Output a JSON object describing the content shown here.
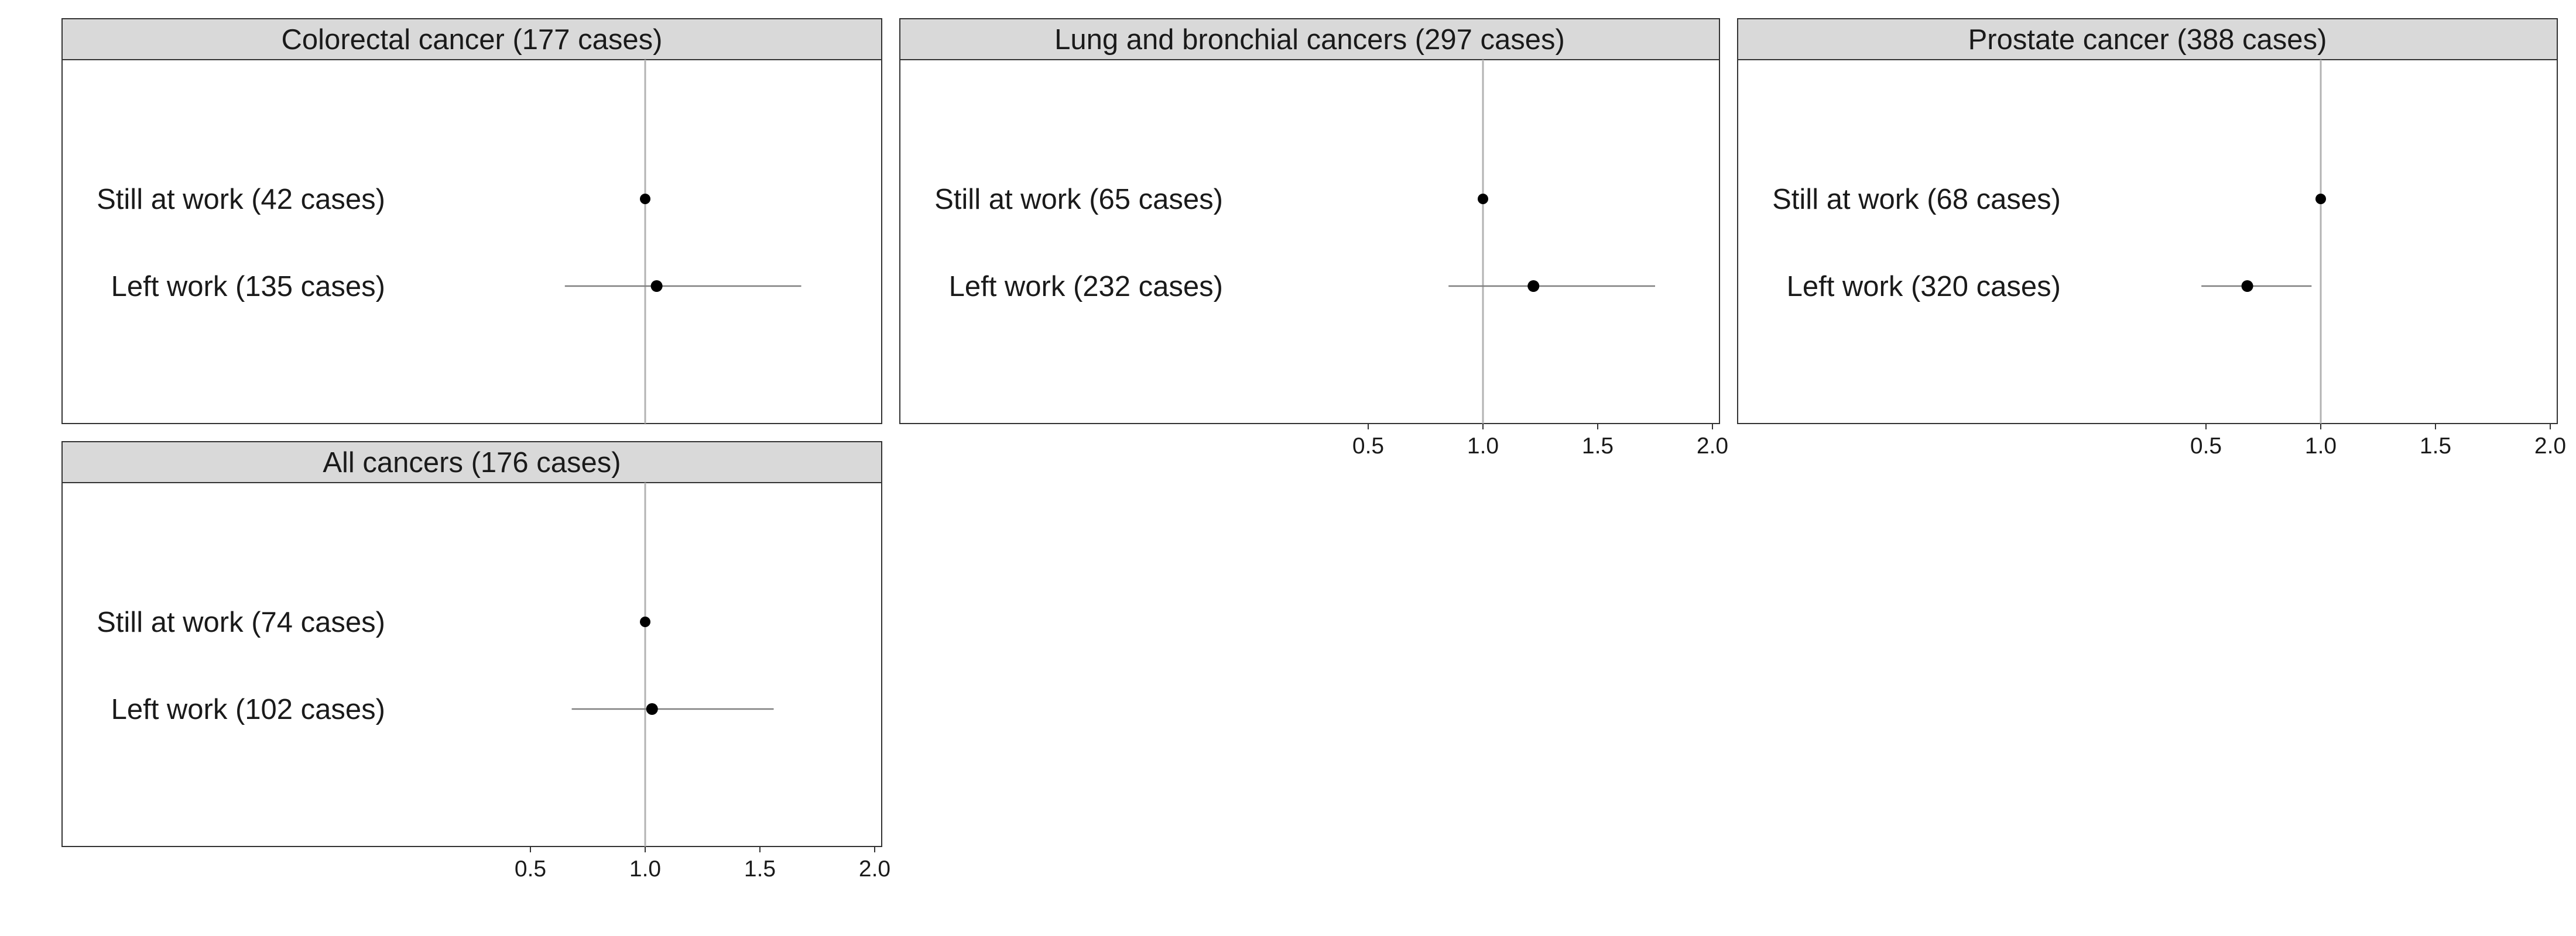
{
  "chart_data": [
    {
      "type": "forest",
      "panel_title": "Colorectal cancer (177 cases)",
      "xlim": [
        0.28,
        2.08
      ],
      "reference_x": 1.0,
      "x_axis_shown": false,
      "ticks": [
        "0.5",
        "1.0",
        "1.5",
        "2.0"
      ],
      "tick_values": [
        0.5,
        1.0,
        1.5,
        2.0
      ],
      "rows": [
        {
          "label": "Still at work (42 cases)",
          "estimate": 1.0,
          "lower": 1.0,
          "upper": 1.0
        },
        {
          "label": "Left work (135 cases)",
          "estimate": 1.05,
          "lower": 0.65,
          "upper": 1.68
        }
      ]
    },
    {
      "type": "forest",
      "panel_title": "Lung and bronchial cancers (297 cases)",
      "xlim": [
        0.28,
        2.08
      ],
      "reference_x": 1.0,
      "x_axis_shown": true,
      "ticks": [
        "0.5",
        "1.0",
        "1.5",
        "2.0"
      ],
      "tick_values": [
        0.5,
        1.0,
        1.5,
        2.0
      ],
      "rows": [
        {
          "label": "Still at work (65 cases)",
          "estimate": 1.0,
          "lower": 1.0,
          "upper": 1.0
        },
        {
          "label": "Left work (232 cases)",
          "estimate": 1.22,
          "lower": 0.85,
          "upper": 1.75
        }
      ]
    },
    {
      "type": "forest",
      "panel_title": "Prostate cancer (388 cases)",
      "xlim": [
        0.28,
        2.08
      ],
      "reference_x": 1.0,
      "x_axis_shown": true,
      "ticks": [
        "0.5",
        "1.0",
        "1.5",
        "2.0"
      ],
      "tick_values": [
        0.5,
        1.0,
        1.5,
        2.0
      ],
      "rows": [
        {
          "label": "Still at work (68 cases)",
          "estimate": 1.0,
          "lower": 1.0,
          "upper": 1.0
        },
        {
          "label": "Left work (320 cases)",
          "estimate": 0.68,
          "lower": 0.48,
          "upper": 0.96
        }
      ]
    },
    {
      "type": "forest",
      "panel_title": "All cancers (176 cases)",
      "xlim": [
        0.28,
        2.08
      ],
      "reference_x": 1.0,
      "x_axis_shown": true,
      "ticks": [
        "0.5",
        "1.0",
        "1.5",
        "2.0"
      ],
      "tick_values": [
        0.5,
        1.0,
        1.5,
        2.0
      ],
      "rows": [
        {
          "label": "Still at work (74 cases)",
          "estimate": 1.0,
          "lower": 1.0,
          "upper": 1.0
        },
        {
          "label": "Left work (102 cases)",
          "estimate": 1.03,
          "lower": 0.68,
          "upper": 1.56
        }
      ]
    }
  ]
}
